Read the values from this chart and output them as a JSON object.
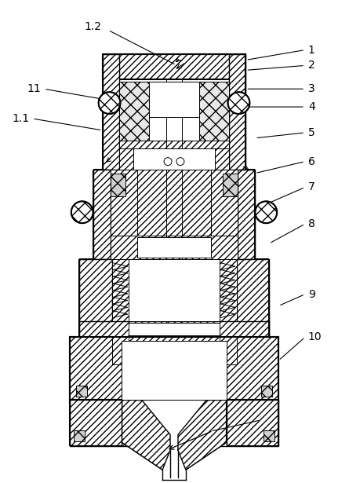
{
  "background_color": "#ffffff",
  "line_color": "#000000",
  "figsize": [
    4.45,
    6.15
  ],
  "dpi": 100,
  "labels_right": [
    [
      "1",
      425,
      62
    ],
    [
      "2",
      425,
      82
    ],
    [
      "3",
      425,
      112
    ],
    [
      "4",
      425,
      135
    ],
    [
      "5",
      425,
      168
    ],
    [
      "6",
      425,
      205
    ],
    [
      "7",
      425,
      238
    ],
    [
      "8",
      425,
      285
    ],
    [
      "9",
      425,
      375
    ],
    [
      "10",
      425,
      430
    ]
  ],
  "labels_left": [
    [
      "11",
      30,
      112
    ],
    [
      "1.1",
      20,
      150
    ]
  ],
  "label_12": [
    100,
    32
  ]
}
